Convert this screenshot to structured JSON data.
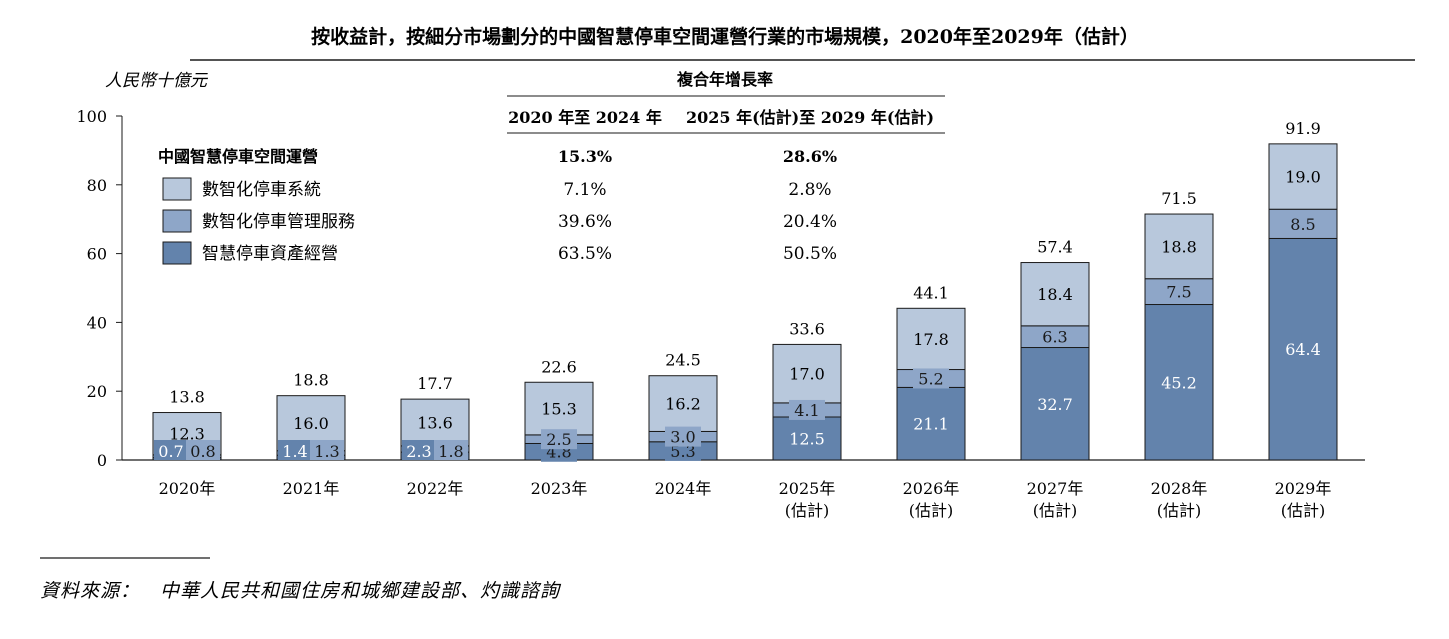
{
  "title": "按收益計，按細分市場劃分的中國智慧停車空間運營行業的市場規模，2020年至2029年（估計）",
  "colors": {
    "light": "#b8c8dc",
    "mid": "#8ea6c8",
    "dark": "#6383ac",
    "border": "#1a1a1a"
  },
  "cagr": {
    "heading": "複合年增長率",
    "col1": "2020 年至 2024 年",
    "col2": "2025 年(估計)至 2029 年(估計)",
    "rows": [
      {
        "label": "中國智慧停車空間運營",
        "v1": "15.3%",
        "v2": "28.6%"
      },
      {
        "label": "數智化停車系統",
        "v1": "7.1%",
        "v2": "2.8%"
      },
      {
        "label": "數智化停車管理服務",
        "v1": "39.6%",
        "v2": "20.4%"
      },
      {
        "label": "智慧停車資產經營",
        "v1": "63.5%",
        "v2": "50.5%"
      }
    ]
  },
  "source": "資料來源：　中華人民共和國住房和城鄉建設部、灼識諮詢",
  "chart_data": {
    "type": "bar",
    "stacked": true,
    "ylabel": "人民幣十億元",
    "ylim": [
      0,
      100
    ],
    "yticks": [
      0,
      20,
      40,
      60,
      80,
      100
    ],
    "categories": [
      "2020年",
      "2021年",
      "2022年",
      "2023年",
      "2024年",
      "2025年",
      "2026年",
      "2027年",
      "2028年",
      "2029年"
    ],
    "category_sublabels": [
      "",
      "",
      "",
      "",
      "",
      "(估計)",
      "(估計)",
      "(估計)",
      "(估計)",
      "(估計)"
    ],
    "series": [
      {
        "name": "智慧停車資產經營",
        "values": [
          0.7,
          1.4,
          2.3,
          4.8,
          5.3,
          12.5,
          21.1,
          32.7,
          45.2,
          64.4
        ],
        "labels": [
          "0.7",
          "1.4",
          "2.3",
          "4.8",
          "5.3",
          "12.5",
          "21.1",
          "32.7",
          "45.2",
          "64.4"
        ]
      },
      {
        "name": "數智化停車管理服務",
        "values": [
          0.8,
          1.3,
          1.8,
          2.5,
          3.0,
          4.1,
          5.2,
          6.3,
          7.5,
          8.5
        ],
        "labels": [
          "0.8",
          "1.3",
          "1.8",
          "2.5",
          "3.0",
          "4.1",
          "5.2",
          "6.3",
          "7.5",
          "8.5"
        ]
      },
      {
        "name": "數智化停車系統",
        "values": [
          12.3,
          16.0,
          13.6,
          15.3,
          16.2,
          17.0,
          17.8,
          18.4,
          18.8,
          19.0
        ],
        "labels": [
          "12.3",
          "16.0",
          "13.6",
          "15.3",
          "16.2",
          "17.0",
          "17.8",
          "18.4",
          "18.8",
          "19.0"
        ]
      }
    ],
    "totals": [
      "13.8",
      "18.8",
      "17.7",
      "22.6",
      "24.5",
      "33.6",
      "44.1",
      "57.4",
      "71.5",
      "91.9"
    ],
    "totals_values": [
      13.8,
      18.8,
      17.7,
      22.6,
      24.5,
      33.6,
      44.1,
      57.4,
      71.5,
      91.9
    ]
  }
}
